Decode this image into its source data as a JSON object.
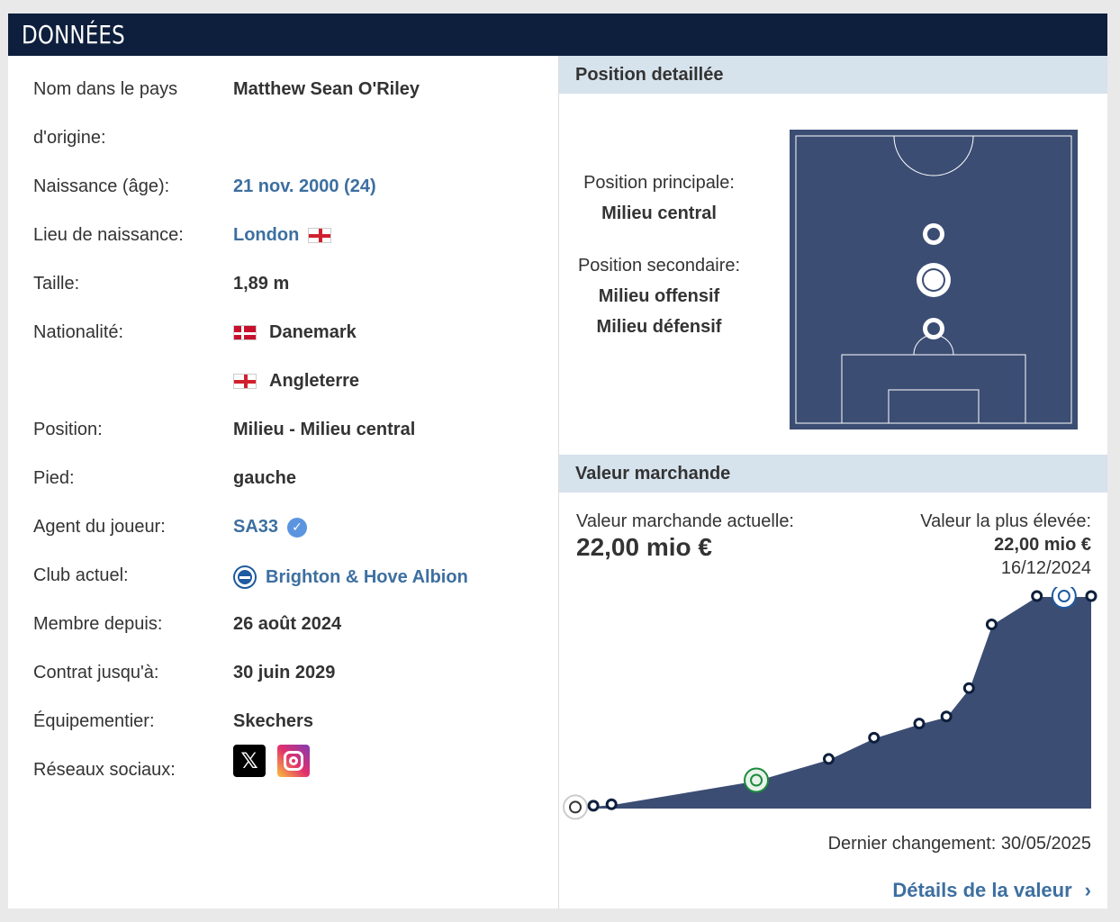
{
  "header": {
    "title": "DONNÉES"
  },
  "details": {
    "name_label_1": "Nom dans le pays",
    "name_label_2": "d'origine:",
    "name_value": "Matthew Sean O'Riley",
    "birth_label": "Naissance (âge):",
    "birth_value": "21 nov. 2000 (24)",
    "birthplace_label": "Lieu de naissance:",
    "birthplace_value": "London",
    "height_label": "Taille:",
    "height_value": "1,89 m",
    "nationality_label": "Nationalité:",
    "nationality_1": "Danemark",
    "nationality_2": "Angleterre",
    "position_label": "Position:",
    "position_value": "Milieu - Milieu central",
    "foot_label": "Pied:",
    "foot_value": "gauche",
    "agent_label": "Agent du joueur:",
    "agent_value": "SA33",
    "club_label": "Club actuel:",
    "club_value": "Brighton & Hove Albion",
    "joined_label": "Membre depuis:",
    "joined_value": "26 août 2024",
    "contract_label": "Contrat jusqu'à:",
    "contract_value": "30 juin 2029",
    "outfitter_label": "Équipementier:",
    "outfitter_value": "Skechers",
    "social_label": "Réseaux sociaux:",
    "social_icons": [
      "x-icon",
      "instagram-icon"
    ]
  },
  "position": {
    "title": "Position detaillée",
    "main_label": "Position principale:",
    "main_value": "Milieu central",
    "secondary_label": "Position secondaire:",
    "secondary_1": "Milieu offensif",
    "secondary_2": "Milieu défensif"
  },
  "market_value": {
    "title": "Valeur marchande",
    "current_label": "Valeur marchande actuelle:",
    "current_value": "22,00 mio €",
    "highest_label": "Valeur la plus élevée:",
    "highest_value": "22,00 mio €",
    "highest_date": "16/12/2024",
    "last_change": "Dernier changement: 30/05/2025",
    "details_link": "Détails de la valeur"
  },
  "colors": {
    "header_bg": "#0e1f3d",
    "section_bg": "#d6e2ec",
    "link": "#3d6fa0",
    "pitch": "#3b4d73"
  },
  "chart_data": {
    "type": "area",
    "values": [
      0.1,
      0.2,
      0.3,
      2.0,
      3.5,
      5.0,
      6.0,
      6.5,
      8.5,
      13.0,
      15.0,
      15.0,
      15.0
    ],
    "x": [
      0,
      4,
      8,
      40,
      56,
      66,
      76,
      82,
      87,
      92,
      102,
      108,
      114
    ],
    "ylim": [
      0,
      15
    ],
    "markers": [
      {
        "index": 0,
        "icon": "fulham-crest-icon"
      },
      {
        "index": 3,
        "icon": "celtic-crest-icon"
      },
      {
        "index": 11,
        "icon": "brighton-crest-icon"
      }
    ]
  }
}
